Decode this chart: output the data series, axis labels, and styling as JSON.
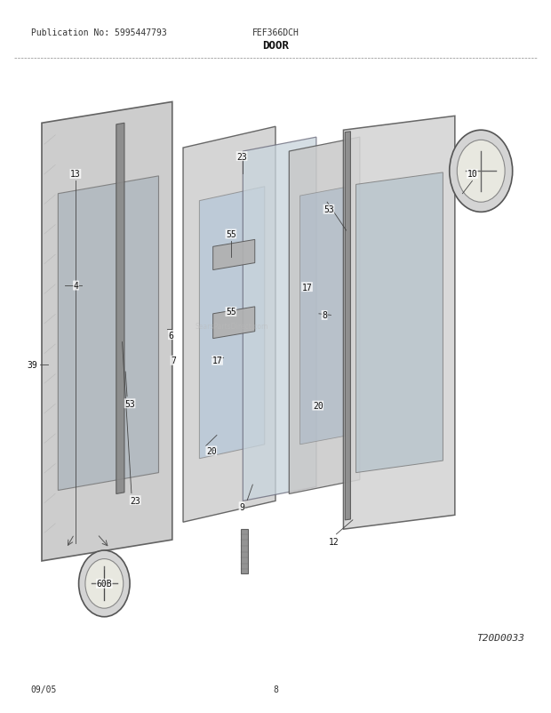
{
  "pub_no": "Publication No: 5995447793",
  "model": "FEF366DCH",
  "section": "DOOR",
  "date": "09/05",
  "page": "8",
  "diagram_id": "T20D0033",
  "bg_color": "#ffffff",
  "line_color": "#000000",
  "figsize": [
    6.2,
    8.03
  ],
  "dpi": 100
}
